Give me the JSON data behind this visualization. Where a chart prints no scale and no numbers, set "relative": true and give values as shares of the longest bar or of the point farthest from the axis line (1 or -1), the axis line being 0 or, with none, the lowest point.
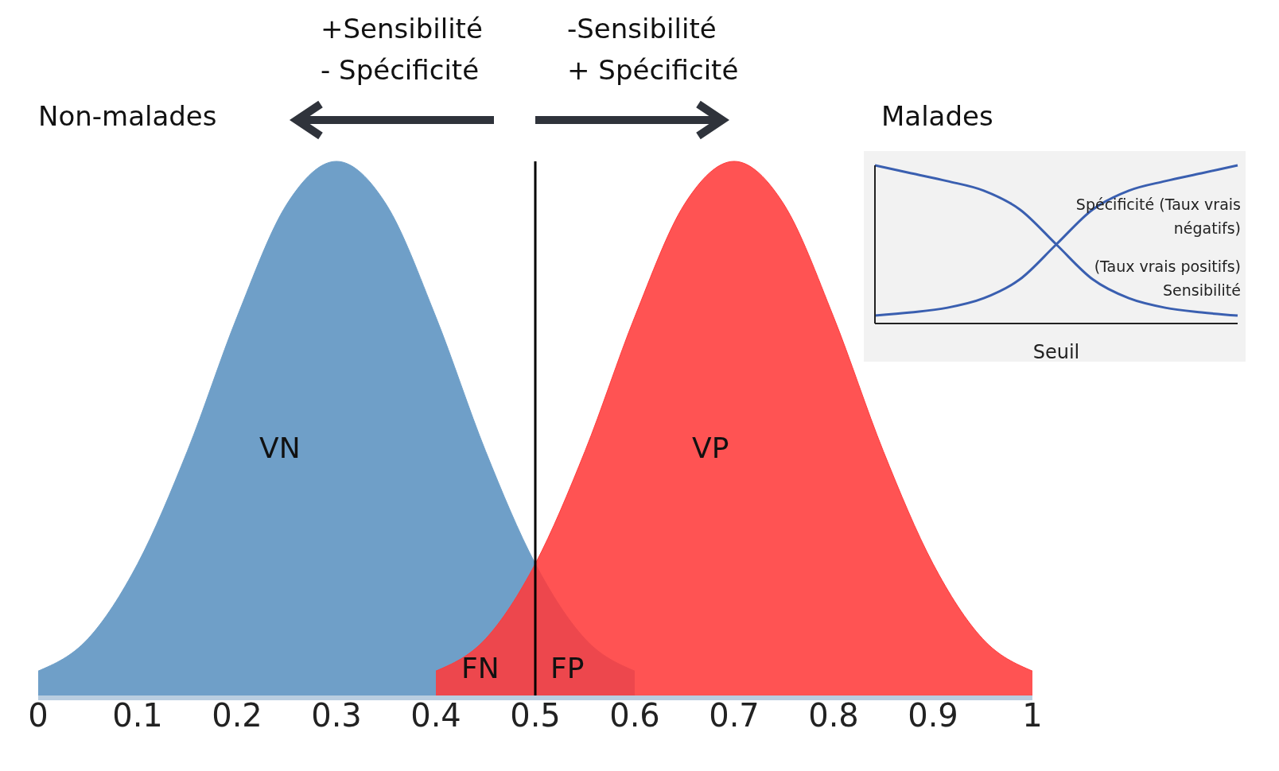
{
  "chart_data": [
    {
      "type": "area",
      "relative": true,
      "x": [
        0,
        0.05,
        0.1,
        0.15,
        0.2,
        0.25,
        0.3,
        0.35,
        0.4,
        0.45,
        0.5,
        0.55,
        0.6,
        0.65,
        0.7,
        0.75,
        0.8,
        0.85,
        0.9,
        0.95,
        1
      ],
      "xlim": [
        0,
        1
      ],
      "xticks": [
        0,
        0.1,
        0.2,
        0.3,
        0.4,
        0.5,
        0.6,
        0.7,
        0.8,
        0.9,
        1
      ],
      "series": [
        {
          "color": "#6f9fc8",
          "values": [
            0.05,
            0.11,
            0.25,
            0.46,
            0.71,
            0.92,
            1,
            0.92,
            0.71,
            0.46,
            0.25,
            0.11,
            0.05,
            null,
            null,
            null,
            null,
            null,
            null,
            null,
            null
          ]
        },
        {
          "color": "#ff3b3b",
          "values": [
            null,
            null,
            null,
            null,
            null,
            null,
            null,
            null,
            0.05,
            0.11,
            0.25,
            0.46,
            0.71,
            0.92,
            1,
            0.92,
            0.71,
            0.46,
            0.25,
            0.11,
            0.05
          ]
        }
      ],
      "ref_lines": [
        {
          "axis": "x",
          "value": 0.5,
          "color": "#000000"
        }
      ],
      "annotations": [
        "Non-malades",
        "Malades",
        "+Sensibilité",
        "- Spécificité",
        "-Sensibilité",
        "+ Spécificité",
        "VN",
        "VP",
        "FN",
        "FP"
      ]
    },
    {
      "type": "line",
      "relative": true,
      "xlabel": "Seuil",
      "categories": [
        null,
        null,
        null,
        null,
        null,
        null,
        null,
        null,
        null,
        null,
        null
      ],
      "series": [
        {
          "name": "Spécificité (Taux vrais négatifs)",
          "color": "#3a5fb0",
          "values": [
            0.05,
            0.07,
            0.1,
            0.16,
            0.28,
            0.5,
            0.72,
            0.84,
            0.9,
            0.95,
            1
          ]
        },
        {
          "name": "(Taux vrais positifs) Sensibilité",
          "color": "#3a5fb0",
          "values": [
            1,
            0.95,
            0.9,
            0.84,
            0.72,
            0.5,
            0.28,
            0.16,
            0.1,
            0.07,
            0.05
          ]
        }
      ],
      "marker": "none",
      "line_style": "solid",
      "legend": "right"
    }
  ]
}
